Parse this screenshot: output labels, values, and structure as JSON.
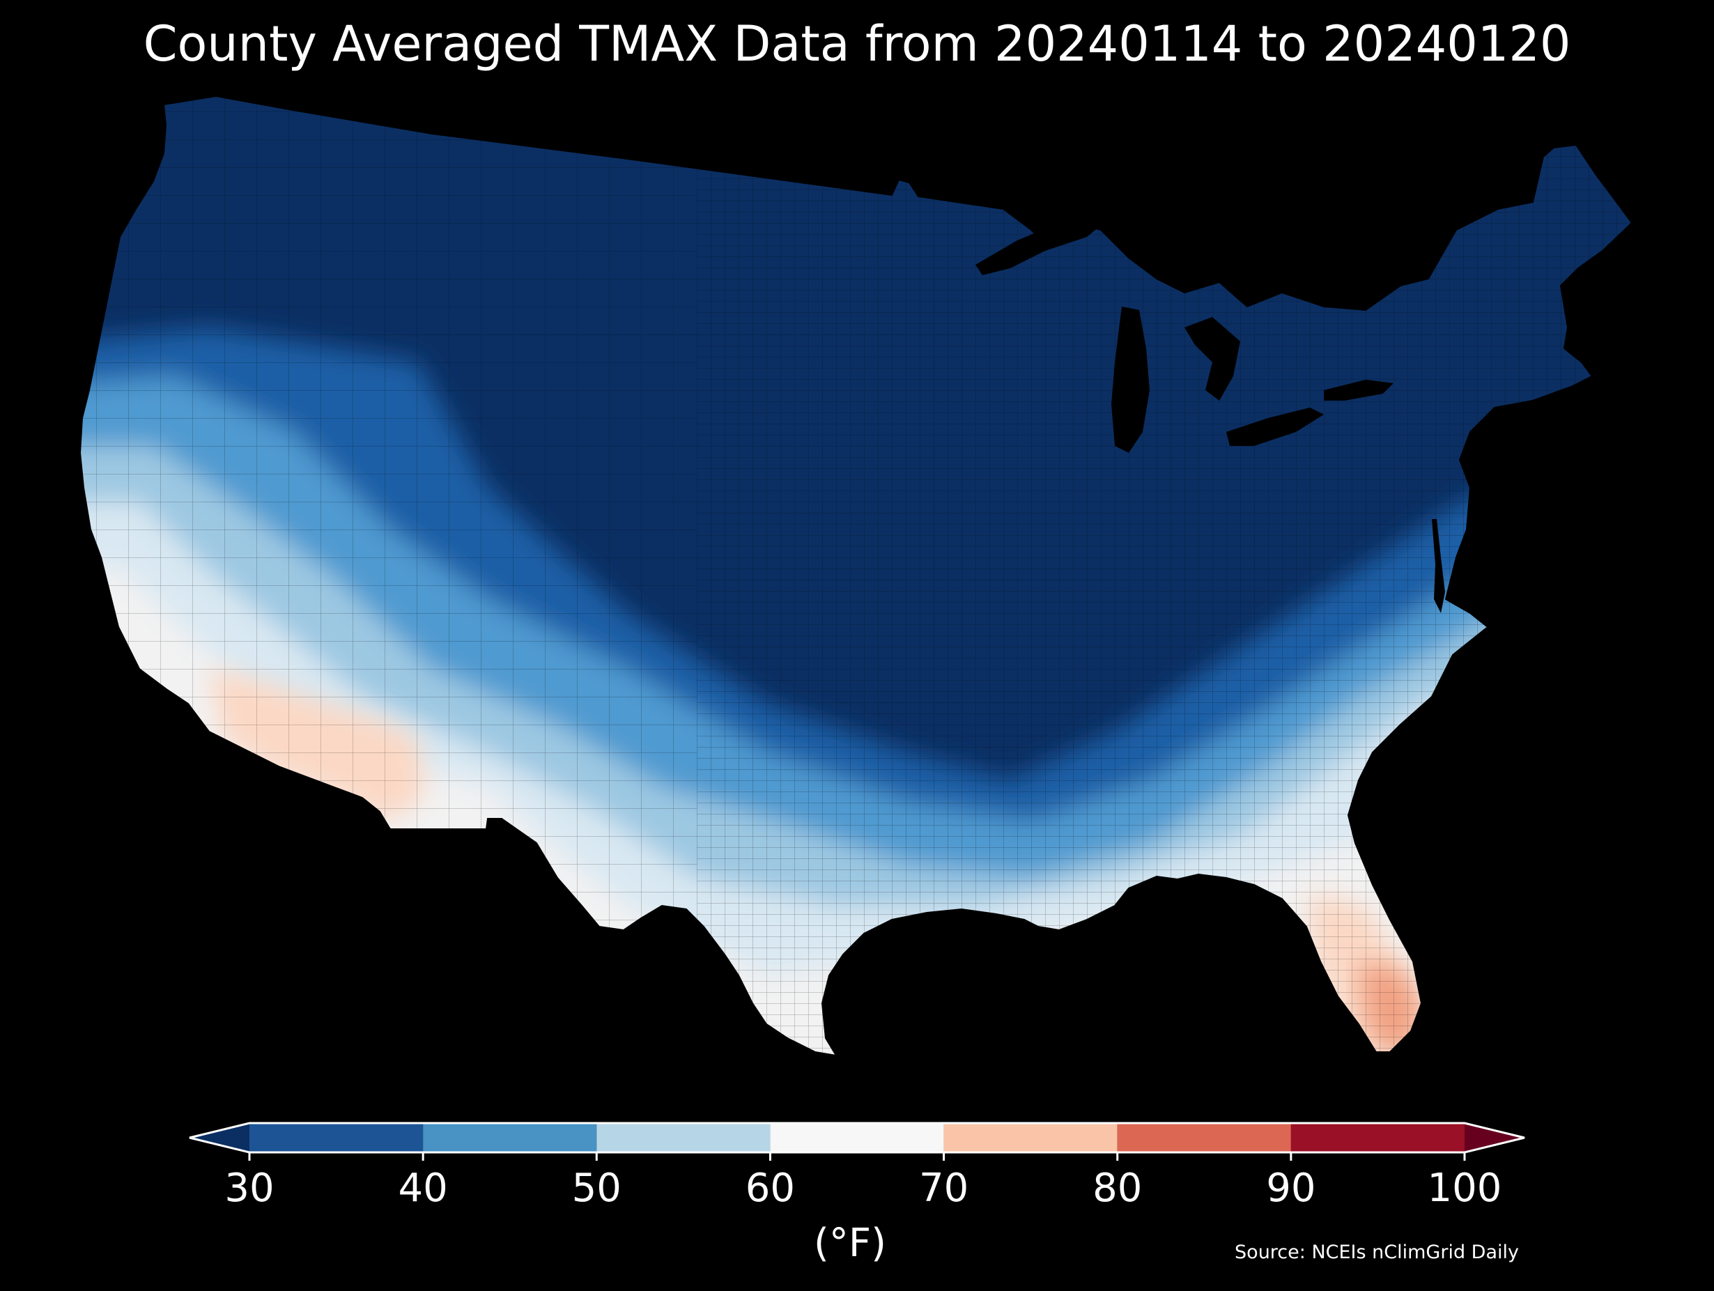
{
  "title": "County Averaged TMAX Data from 20240114 to 20240120",
  "source": "Source: NCEIs nClimGrid Daily",
  "colorbar": {
    "unit_label": "(°F)",
    "ticks": [
      "30",
      "40",
      "50",
      "60",
      "70",
      "80",
      "90",
      "100"
    ],
    "under_color": "#0b2f63",
    "over_color": "#67001f",
    "bins": [
      {
        "from": 30,
        "to": 40,
        "color": "#1d5496"
      },
      {
        "from": 40,
        "to": 50,
        "color": "#4893c4"
      },
      {
        "from": 50,
        "to": 60,
        "color": "#b6d6e8"
      },
      {
        "from": 60,
        "to": 70,
        "color": "#f7f7f7"
      },
      {
        "from": 70,
        "to": 80,
        "color": "#fac4a8"
      },
      {
        "from": 80,
        "to": 90,
        "color": "#dc6853"
      },
      {
        "from": 90,
        "to": 100,
        "color": "#9a1026"
      }
    ]
  },
  "map": {
    "region": "Contiguous United States",
    "colors": {
      "very_cold": "#0b2f63",
      "cold": "#1f5fa6",
      "cool": "#4f9ad0",
      "mild": "#9dc8e2",
      "pale": "#d9e8f2",
      "neutral": "#f2f2f2",
      "warm": "#fbd8c5",
      "warmer": "#f1a283",
      "lake": "#000000"
    }
  }
}
